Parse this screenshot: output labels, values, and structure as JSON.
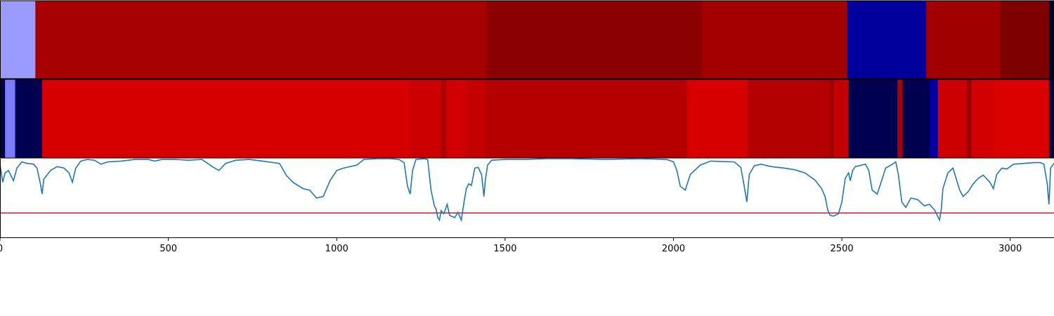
{
  "chart_data": [
    {
      "type": "heatmap",
      "xlim": [
        0,
        3130
      ],
      "segments": [
        {
          "x0": 0,
          "x1": 105,
          "color": "#9a9aff"
        },
        {
          "x0": 105,
          "x1": 1445,
          "color": "#a60000"
        },
        {
          "x0": 1445,
          "x1": 2085,
          "color": "#8b0000"
        },
        {
          "x0": 2085,
          "x1": 2515,
          "color": "#a50000"
        },
        {
          "x0": 2515,
          "x1": 2750,
          "color": "#00009c"
        },
        {
          "x0": 2750,
          "x1": 2970,
          "color": "#a00000"
        },
        {
          "x0": 2970,
          "x1": 3115,
          "color": "#7e0000"
        },
        {
          "x0": 3115,
          "x1": 3130,
          "color": "#000030"
        }
      ]
    },
    {
      "type": "heatmap",
      "xlim": [
        0,
        3130
      ],
      "segments": [
        {
          "x0": 0,
          "x1": 15,
          "color": "#000050"
        },
        {
          "x0": 15,
          "x1": 45,
          "color": "#7c7cff"
        },
        {
          "x0": 45,
          "x1": 125,
          "color": "#000050"
        },
        {
          "x0": 125,
          "x1": 1215,
          "color": "#d60000"
        },
        {
          "x0": 1215,
          "x1": 1310,
          "color": "#cc0000"
        },
        {
          "x0": 1310,
          "x1": 1325,
          "color": "#b00000"
        },
        {
          "x0": 1325,
          "x1": 1380,
          "color": "#d30000"
        },
        {
          "x0": 1380,
          "x1": 1440,
          "color": "#c40000"
        },
        {
          "x0": 1440,
          "x1": 2040,
          "color": "#b60000"
        },
        {
          "x0": 2040,
          "x1": 2220,
          "color": "#d70000"
        },
        {
          "x0": 2220,
          "x1": 2465,
          "color": "#b50000"
        },
        {
          "x0": 2465,
          "x1": 2475,
          "color": "#990000"
        },
        {
          "x0": 2475,
          "x1": 2520,
          "color": "#c20000"
        },
        {
          "x0": 2520,
          "x1": 2665,
          "color": "#000050"
        },
        {
          "x0": 2665,
          "x1": 2680,
          "color": "#ad0000"
        },
        {
          "x0": 2680,
          "x1": 2760,
          "color": "#000050"
        },
        {
          "x0": 2760,
          "x1": 2785,
          "color": "#0000a6"
        },
        {
          "x0": 2785,
          "x1": 2795,
          "color": "#d30000"
        },
        {
          "x0": 2795,
          "x1": 2870,
          "color": "#cc0000"
        },
        {
          "x0": 2870,
          "x1": 2885,
          "color": "#9a0000"
        },
        {
          "x0": 2885,
          "x1": 2955,
          "color": "#d20000"
        },
        {
          "x0": 2955,
          "x1": 3115,
          "color": "#da0000"
        },
        {
          "x0": 3115,
          "x1": 3130,
          "color": "#000040"
        }
      ]
    },
    {
      "type": "line",
      "xlim": [
        0,
        3130
      ],
      "ylim": [
        0,
        1
      ],
      "threshold": 0.31,
      "threshold_color": "#e8190f",
      "series_color": "#1f77b4",
      "xticks": [
        0,
        500,
        1000,
        1500,
        2000,
        2500,
        3000
      ],
      "points": [
        [
          0,
          0.93
        ],
        [
          8,
          0.7
        ],
        [
          15,
          0.82
        ],
        [
          25,
          0.85
        ],
        [
          40,
          0.72
        ],
        [
          50,
          0.88
        ],
        [
          65,
          0.96
        ],
        [
          80,
          0.94
        ],
        [
          100,
          0.93
        ],
        [
          110,
          0.88
        ],
        [
          120,
          0.68
        ],
        [
          125,
          0.55
        ],
        [
          130,
          0.74
        ],
        [
          150,
          0.85
        ],
        [
          170,
          0.9
        ],
        [
          190,
          0.88
        ],
        [
          205,
          0.82
        ],
        [
          215,
          0.7
        ],
        [
          225,
          0.88
        ],
        [
          240,
          0.97
        ],
        [
          260,
          0.99
        ],
        [
          280,
          0.98
        ],
        [
          300,
          0.93
        ],
        [
          320,
          0.96
        ],
        [
          360,
          0.97
        ],
        [
          400,
          0.99
        ],
        [
          440,
          0.99
        ],
        [
          460,
          0.97
        ],
        [
          480,
          0.99
        ],
        [
          520,
          0.99
        ],
        [
          560,
          0.98
        ],
        [
          600,
          0.99
        ],
        [
          630,
          0.9
        ],
        [
          650,
          0.85
        ],
        [
          670,
          0.94
        ],
        [
          700,
          0.98
        ],
        [
          740,
          0.99
        ],
        [
          780,
          0.97
        ],
        [
          830,
          0.94
        ],
        [
          850,
          0.79
        ],
        [
          870,
          0.7
        ],
        [
          900,
          0.62
        ],
        [
          920,
          0.6
        ],
        [
          940,
          0.5
        ],
        [
          960,
          0.52
        ],
        [
          980,
          0.72
        ],
        [
          1000,
          0.85
        ],
        [
          1020,
          0.88
        ],
        [
          1060,
          0.92
        ],
        [
          1080,
          0.99
        ],
        [
          1120,
          1.0
        ],
        [
          1160,
          1.0
        ],
        [
          1185,
          0.99
        ],
        [
          1200,
          0.95
        ],
        [
          1210,
          0.65
        ],
        [
          1218,
          0.55
        ],
        [
          1225,
          0.85
        ],
        [
          1235,
          0.99
        ],
        [
          1260,
          1.0
        ],
        [
          1270,
          0.99
        ],
        [
          1280,
          0.6
        ],
        [
          1290,
          0.4
        ],
        [
          1295,
          0.36
        ],
        [
          1300,
          0.25
        ],
        [
          1305,
          0.22
        ],
        [
          1310,
          0.34
        ],
        [
          1318,
          0.3
        ],
        [
          1328,
          0.42
        ],
        [
          1335,
          0.28
        ],
        [
          1350,
          0.25
        ],
        [
          1360,
          0.32
        ],
        [
          1370,
          0.22
        ],
        [
          1378,
          0.45
        ],
        [
          1385,
          0.62
        ],
        [
          1392,
          0.68
        ],
        [
          1400,
          0.66
        ],
        [
          1410,
          0.88
        ],
        [
          1420,
          0.89
        ],
        [
          1430,
          0.8
        ],
        [
          1437,
          0.52
        ],
        [
          1441,
          0.72
        ],
        [
          1448,
          0.92
        ],
        [
          1460,
          0.98
        ],
        [
          1500,
          0.99
        ],
        [
          1560,
          0.99
        ],
        [
          1620,
          1.0
        ],
        [
          1700,
          1.0
        ],
        [
          1800,
          0.99
        ],
        [
          1900,
          1.0
        ],
        [
          1980,
          0.99
        ],
        [
          2000,
          0.96
        ],
        [
          2010,
          0.85
        ],
        [
          2020,
          0.65
        ],
        [
          2035,
          0.6
        ],
        [
          2050,
          0.8
        ],
        [
          2080,
          0.92
        ],
        [
          2110,
          0.97
        ],
        [
          2180,
          0.96
        ],
        [
          2200,
          0.89
        ],
        [
          2210,
          0.65
        ],
        [
          2218,
          0.45
        ],
        [
          2225,
          0.8
        ],
        [
          2240,
          0.91
        ],
        [
          2260,
          0.93
        ],
        [
          2290,
          0.9
        ],
        [
          2330,
          0.88
        ],
        [
          2360,
          0.86
        ],
        [
          2390,
          0.82
        ],
        [
          2420,
          0.73
        ],
        [
          2440,
          0.62
        ],
        [
          2450,
          0.52
        ],
        [
          2458,
          0.35
        ],
        [
          2465,
          0.28
        ],
        [
          2475,
          0.27
        ],
        [
          2490,
          0.3
        ],
        [
          2500,
          0.45
        ],
        [
          2510,
          0.75
        ],
        [
          2520,
          0.82
        ],
        [
          2525,
          0.72
        ],
        [
          2532,
          0.85
        ],
        [
          2540,
          0.9
        ],
        [
          2570,
          0.93
        ],
        [
          2580,
          0.85
        ],
        [
          2590,
          0.6
        ],
        [
          2605,
          0.55
        ],
        [
          2615,
          0.68
        ],
        [
          2630,
          0.88
        ],
        [
          2650,
          0.93
        ],
        [
          2660,
          0.96
        ],
        [
          2668,
          0.79
        ],
        [
          2678,
          0.45
        ],
        [
          2690,
          0.38
        ],
        [
          2705,
          0.5
        ],
        [
          2725,
          0.48
        ],
        [
          2745,
          0.4
        ],
        [
          2760,
          0.42
        ],
        [
          2775,
          0.35
        ],
        [
          2790,
          0.22
        ],
        [
          2795,
          0.35
        ],
        [
          2800,
          0.62
        ],
        [
          2815,
          0.82
        ],
        [
          2830,
          0.88
        ],
        [
          2850,
          0.6
        ],
        [
          2860,
          0.52
        ],
        [
          2875,
          0.58
        ],
        [
          2890,
          0.68
        ],
        [
          2905,
          0.75
        ],
        [
          2920,
          0.79
        ],
        [
          2940,
          0.7
        ],
        [
          2950,
          0.62
        ],
        [
          2960,
          0.8
        ],
        [
          2975,
          0.88
        ],
        [
          2990,
          0.87
        ],
        [
          3010,
          0.93
        ],
        [
          3040,
          0.94
        ],
        [
          3070,
          0.95
        ],
        [
          3090,
          0.95
        ],
        [
          3100,
          0.93
        ],
        [
          3110,
          0.68
        ],
        [
          3115,
          0.42
        ],
        [
          3120,
          0.88
        ],
        [
          3130,
          0.94
        ]
      ]
    }
  ]
}
